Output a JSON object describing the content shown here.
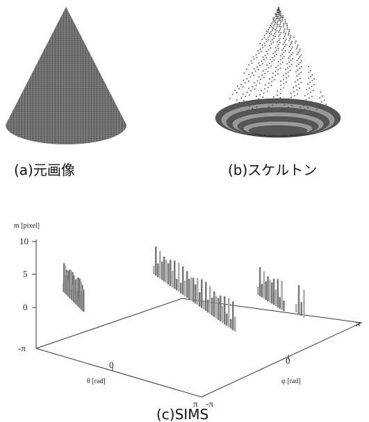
{
  "figures": [
    {
      "caption": "(a)元画像"
    },
    {
      "caption": "(b)スケルトン"
    }
  ],
  "plot": {
    "y_label": "m [pixel]",
    "y_ticks": [
      "10",
      "5",
      "0",
      "-π"
    ],
    "theta_label": "θ [rad]",
    "theta_ticks": [
      "0",
      "π"
    ],
    "phi_label": "φ [rad]",
    "phi_ticks": [
      "-π",
      "0",
      "π"
    ],
    "caption": "(c)SIMS"
  }
}
